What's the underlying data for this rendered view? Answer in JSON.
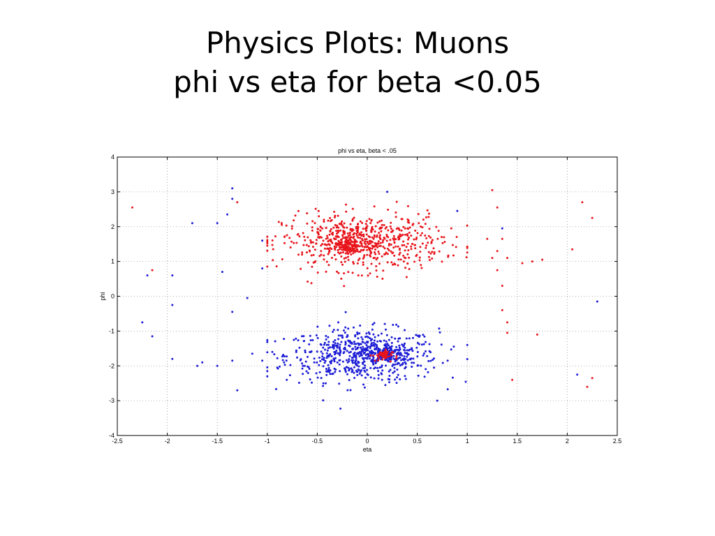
{
  "slide": {
    "title_line1": "Physics Plots: Muons",
    "title_line2": "phi vs eta for beta <0.05"
  },
  "chart_data": {
    "type": "scatter",
    "title": "phi vs eta, beta < .05",
    "xlabel": "eta",
    "ylabel": "phi",
    "xlim": [
      -2.5,
      2.5
    ],
    "ylim": [
      -4,
      4
    ],
    "xticks": [
      "-2.5",
      "-2",
      "-1.5",
      "-1",
      "-0.5",
      "0",
      "0.5",
      "1",
      "1.5",
      "2",
      "2.5"
    ],
    "yticks": [
      "-4",
      "-3",
      "-2",
      "-1",
      "0",
      "1",
      "2",
      "3",
      "4"
    ],
    "grid": true,
    "colors": {
      "red": "#e8141b",
      "blue": "#1c1cd6"
    },
    "series": [
      {
        "color": "red",
        "clusters": [
          {
            "center": [
              -0.05,
              1.55
            ],
            "spread": [
              0.4,
              0.4
            ],
            "count": 640
          },
          {
            "center": [
              -0.2,
              1.5
            ],
            "spread": [
              0.07,
              0.12
            ],
            "count": 110
          },
          {
            "center": [
              0.15,
              -1.7
            ],
            "spread": [
              0.05,
              0.08
            ],
            "count": 45
          }
        ],
        "points": [
          [
            -2.35,
            2.55
          ],
          [
            -2.15,
            0.75
          ],
          [
            -1.3,
            2.7
          ],
          [
            1.25,
            3.05
          ],
          [
            1.3,
            2.55
          ],
          [
            1.35,
            1.65
          ],
          [
            1.3,
            1.3
          ],
          [
            1.4,
            1.1
          ],
          [
            1.55,
            0.95
          ],
          [
            1.65,
            1.0
          ],
          [
            1.75,
            1.05
          ],
          [
            1.35,
            0.3
          ],
          [
            1.35,
            -0.4
          ],
          [
            1.4,
            -0.75
          ],
          [
            1.4,
            -1.05
          ],
          [
            1.7,
            -1.1
          ],
          [
            1.45,
            -2.4
          ],
          [
            2.15,
            2.7
          ],
          [
            2.25,
            2.25
          ],
          [
            2.05,
            1.35
          ],
          [
            2.25,
            -2.35
          ],
          [
            2.2,
            -2.6
          ],
          [
            1.2,
            1.65
          ],
          [
            1.25,
            1.1
          ],
          [
            1.3,
            0.75
          ]
        ]
      },
      {
        "color": "blue",
        "clusters": [
          {
            "center": [
              -0.05,
              -1.7
            ],
            "spread": [
              0.38,
              0.38
            ],
            "count": 620
          },
          {
            "center": [
              0.2,
              -1.65
            ],
            "spread": [
              0.08,
              0.12
            ],
            "count": 110
          }
        ],
        "points": [
          [
            -1.35,
            3.1
          ],
          [
            -1.4,
            2.35
          ],
          [
            -1.5,
            2.1
          ],
          [
            -1.75,
            2.1
          ],
          [
            -1.45,
            0.7
          ],
          [
            -1.05,
            1.6
          ],
          [
            -1.05,
            0.8
          ],
          [
            -2.2,
            0.6
          ],
          [
            -1.95,
            0.6
          ],
          [
            -1.35,
            2.8
          ],
          [
            -1.95,
            -0.25
          ],
          [
            -1.2,
            -0.05
          ],
          [
            -1.35,
            -0.45
          ],
          [
            -2.25,
            -0.75
          ],
          [
            -2.15,
            -1.15
          ],
          [
            -1.95,
            -1.8
          ],
          [
            -1.7,
            -2.0
          ],
          [
            -1.65,
            -1.9
          ],
          [
            -1.5,
            -2.0
          ],
          [
            -1.35,
            -1.85
          ],
          [
            -1.3,
            -2.7
          ],
          [
            -1.05,
            -1.85
          ],
          [
            -1.0,
            -2.15
          ],
          [
            -1.0,
            -2.3
          ],
          [
            -0.95,
            -1.6
          ],
          [
            1.35,
            1.95
          ],
          [
            0.9,
            2.45
          ],
          [
            0.2,
            3.0
          ],
          [
            2.1,
            -2.25
          ],
          [
            2.3,
            -0.15
          ],
          [
            0.7,
            -3.0
          ],
          [
            -0.9,
            -2.05
          ],
          [
            -1.15,
            -1.65
          ]
        ]
      }
    ]
  }
}
